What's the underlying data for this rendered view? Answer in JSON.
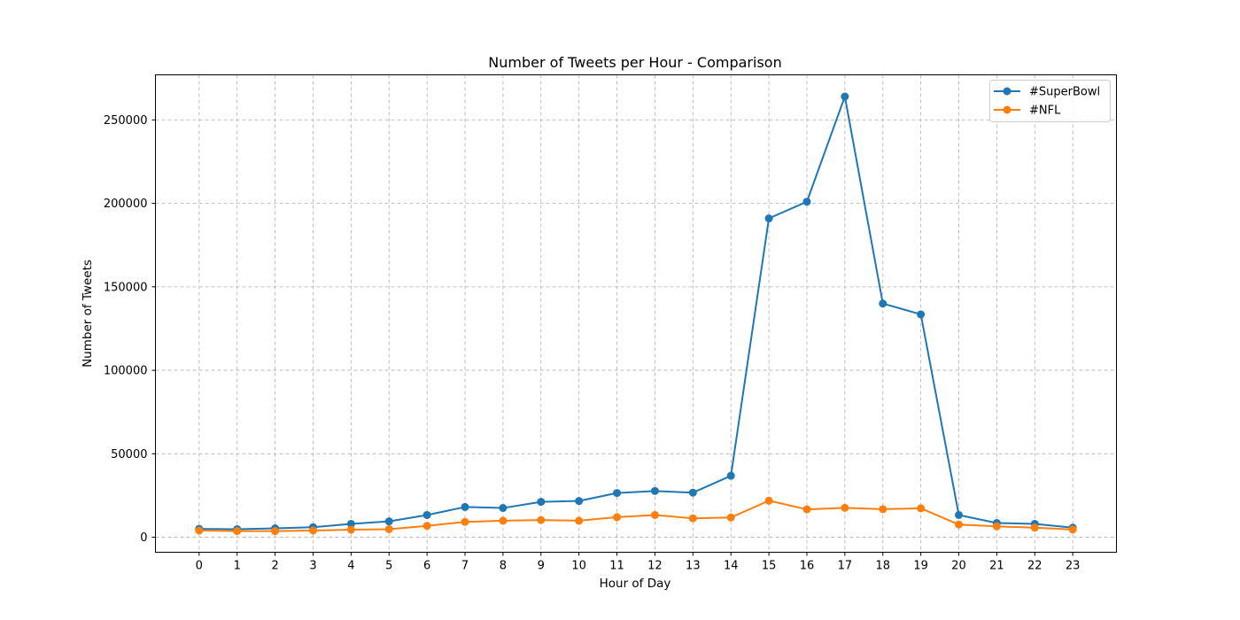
{
  "chart_data": {
    "type": "line",
    "title": "Number of Tweets per Hour - Comparison",
    "xlabel": "Hour of Day",
    "ylabel": "Number of Tweets",
    "x": [
      0,
      1,
      2,
      3,
      4,
      5,
      6,
      7,
      8,
      9,
      10,
      11,
      12,
      13,
      14,
      15,
      16,
      17,
      18,
      19,
      20,
      21,
      22,
      23
    ],
    "x_tick_labels": [
      "0",
      "1",
      "2",
      "3",
      "4",
      "5",
      "6",
      "7",
      "8",
      "9",
      "10",
      "11",
      "12",
      "13",
      "14",
      "15",
      "16",
      "17",
      "18",
      "19",
      "20",
      "21",
      "22",
      "23"
    ],
    "y_ticks": [
      0,
      50000,
      100000,
      150000,
      200000,
      250000
    ],
    "y_tick_labels": [
      "0",
      "50000",
      "100000",
      "150000",
      "200000",
      "250000"
    ],
    "xlim": [
      -1.15,
      24.15
    ],
    "ylim": [
      -9000,
      277000
    ],
    "grid": true,
    "grid_style": "dashed",
    "legend_position": "top-right",
    "markers": true,
    "series": [
      {
        "name": "#SuperBowl",
        "color": "#1f77b4",
        "values": [
          5000,
          4800,
          5300,
          6000,
          8000,
          9500,
          13300,
          18100,
          17500,
          21200,
          21700,
          26500,
          27700,
          26700,
          36800,
          191000,
          201000,
          264000,
          140000,
          133500,
          13300,
          8500,
          8000,
          5700
        ]
      },
      {
        "name": "#NFL",
        "color": "#ff7f0e",
        "values": [
          4000,
          3700,
          3700,
          4000,
          4500,
          4800,
          6800,
          9200,
          9900,
          10300,
          9900,
          12000,
          13300,
          11300,
          11800,
          21900,
          16700,
          17600,
          16800,
          17300,
          7600,
          6500,
          5700,
          4600
        ]
      }
    ]
  }
}
